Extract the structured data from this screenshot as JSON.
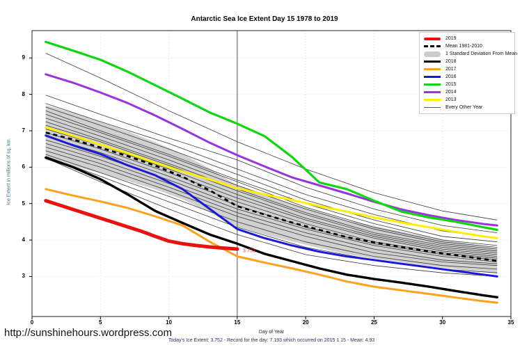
{
  "header": {
    "title": "Antarctic Sea Ice Extent Day 15 1978 to 2019"
  },
  "footer": {
    "url": "http://sunshinehours.wordpress.com",
    "caption": "Today's Ice Extent: 3.752  - Record for the day: 7.193 which occurred on 2015 1 15  - Mean: 4.93"
  },
  "colors": {
    "red_2019": "#e8110d",
    "black_2018": "#000000",
    "orange_2017": "#ffa01e",
    "blue_2016": "#1a1ad6",
    "green_2015": "#0fd60f",
    "purple_2014": "#9933dd",
    "yellow_2013": "#ffee00",
    "mean_dashed": "#000000",
    "std_band": "#cccccc",
    "other_years": "#3a3a3a",
    "grid": "#dedede",
    "day15_line": "#555555",
    "annotation": "#ef4123",
    "ylabel_text": "#2e7373"
  },
  "chart_data": {
    "type": "line",
    "title": "Antarctic Sea Ice Extent Day 15 1978 to 2019",
    "xlabel": "Day of Year",
    "ylabel": "Ice Extent in millions of sq. km.",
    "xlim": [
      0,
      35
    ],
    "ylim": [
      1.9,
      9.75
    ],
    "xticks": [
      0,
      5,
      10,
      15,
      20,
      25,
      30,
      35
    ],
    "yticks": [
      3,
      4,
      5,
      6,
      7,
      8,
      9
    ],
    "grid": "dotted",
    "legend_position": "top-right",
    "day15_marker_x": 15,
    "annotation": {
      "text": "3.752",
      "x": 15.4,
      "y": 3.71
    },
    "legend": [
      {
        "label": "2019",
        "style": "thick",
        "color": "#e8110d"
      },
      {
        "label": "Mean 1981-2010",
        "style": "dashed",
        "color": "#000000"
      },
      {
        "label": "1 Standard Deviation From Mean",
        "style": "band",
        "color": "#cccccc"
      },
      {
        "label": "2018",
        "style": "med",
        "color": "#000000"
      },
      {
        "label": "2017",
        "style": "med",
        "color": "#ffa01e"
      },
      {
        "label": "2016",
        "style": "med",
        "color": "#1a1ad6"
      },
      {
        "label": "2015",
        "style": "med",
        "color": "#0fd60f"
      },
      {
        "label": "2014",
        "style": "med",
        "color": "#9933dd"
      },
      {
        "label": "2013",
        "style": "med",
        "color": "#ffee00"
      },
      {
        "label": "Every Other Year",
        "style": "thin",
        "color": "#555555"
      }
    ],
    "band": {
      "name": "1 Standard Deviation From Mean",
      "days": [
        1,
        3,
        5,
        7,
        9,
        11,
        13,
        15,
        17,
        19,
        21,
        23,
        25,
        27,
        29,
        31,
        33,
        34
      ],
      "upper": [
        7.7,
        7.49,
        7.24,
        6.98,
        6.69,
        6.36,
        5.96,
        5.5,
        5.25,
        5.0,
        4.78,
        4.55,
        4.39,
        4.23,
        4.09,
        3.96,
        3.84,
        3.78
      ],
      "lower": [
        6.2,
        6.03,
        5.84,
        5.62,
        5.39,
        5.12,
        4.76,
        4.36,
        4.15,
        3.96,
        3.78,
        3.61,
        3.49,
        3.39,
        3.29,
        3.2,
        3.12,
        3.08
      ]
    },
    "mean": {
      "name": "Mean 1981-2010",
      "days": [
        1,
        3,
        5,
        7,
        9,
        11,
        13,
        15,
        17,
        19,
        21,
        23,
        25,
        27,
        29,
        31,
        33,
        34
      ],
      "values": [
        6.95,
        6.76,
        6.54,
        6.3,
        6.04,
        5.74,
        5.36,
        4.93,
        4.7,
        4.48,
        4.28,
        4.08,
        3.94,
        3.81,
        3.69,
        3.58,
        3.48,
        3.43
      ]
    },
    "series": [
      {
        "name": "2013",
        "color": "#ffee00",
        "width": 3,
        "days": [
          1,
          3,
          5,
          7,
          9,
          11,
          13,
          15,
          17,
          19,
          21,
          23,
          25,
          27,
          29,
          31,
          33,
          34
        ],
        "values": [
          7.09,
          6.86,
          6.62,
          6.38,
          6.12,
          5.88,
          5.66,
          5.42,
          5.25,
          5.1,
          4.93,
          4.78,
          4.62,
          4.48,
          4.35,
          4.22,
          4.1,
          4.05
        ]
      },
      {
        "name": "2014",
        "color": "#9933dd",
        "width": 3,
        "days": [
          1,
          3,
          5,
          7,
          9,
          11,
          13,
          15,
          17,
          19,
          21,
          23,
          25,
          27,
          29,
          31,
          33,
          34
        ],
        "values": [
          8.55,
          8.32,
          8.05,
          7.76,
          7.42,
          7.05,
          6.67,
          6.33,
          6.02,
          5.72,
          5.5,
          5.28,
          5.05,
          4.84,
          4.68,
          4.55,
          4.44,
          4.4
        ]
      },
      {
        "name": "2015",
        "color": "#0fd60f",
        "width": 3.2,
        "days": [
          1,
          3,
          5,
          7,
          9,
          11,
          13,
          15,
          17,
          19,
          21,
          23,
          25,
          27,
          29,
          31,
          33,
          34
        ],
        "values": [
          9.44,
          9.2,
          8.95,
          8.62,
          8.25,
          7.88,
          7.5,
          7.193,
          6.85,
          6.28,
          5.58,
          5.4,
          5.08,
          4.78,
          4.62,
          4.5,
          4.35,
          4.28
        ]
      },
      {
        "name": "2016",
        "color": "#1a1ad6",
        "width": 3,
        "days": [
          1,
          3,
          5,
          7,
          9,
          11,
          13,
          15,
          17,
          19,
          21,
          23,
          25,
          27,
          29,
          31,
          33,
          34
        ],
        "values": [
          6.87,
          6.6,
          6.36,
          6.05,
          5.78,
          5.4,
          4.85,
          4.3,
          4.05,
          3.85,
          3.68,
          3.55,
          3.45,
          3.35,
          3.25,
          3.15,
          3.05,
          3.0
        ]
      },
      {
        "name": "2017",
        "color": "#ffa01e",
        "width": 3,
        "days": [
          1,
          3,
          5,
          7,
          9,
          11,
          13,
          15,
          17,
          19,
          21,
          23,
          25,
          27,
          29,
          31,
          33,
          34
        ],
        "values": [
          5.4,
          5.22,
          5.06,
          4.88,
          4.65,
          4.4,
          3.95,
          3.55,
          3.38,
          3.22,
          3.05,
          2.86,
          2.72,
          2.62,
          2.52,
          2.42,
          2.32,
          2.28
        ]
      },
      {
        "name": "2018",
        "color": "#000000",
        "width": 3.4,
        "days": [
          1,
          3,
          5,
          7,
          9,
          11,
          13,
          15,
          17,
          19,
          21,
          23,
          25,
          27,
          29,
          31,
          33,
          34
        ],
        "values": [
          6.26,
          6.0,
          5.67,
          5.25,
          4.8,
          4.47,
          4.15,
          3.9,
          3.62,
          3.42,
          3.22,
          3.05,
          2.93,
          2.83,
          2.72,
          2.6,
          2.48,
          2.43
        ]
      },
      {
        "name": "2019",
        "color": "#e8110d",
        "width": 5,
        "days": [
          1,
          2,
          3,
          4,
          5,
          6,
          7,
          8,
          9,
          10,
          11,
          12,
          13,
          14,
          15
        ],
        "values": [
          5.08,
          4.96,
          4.84,
          4.72,
          4.6,
          4.48,
          4.36,
          4.24,
          4.1,
          3.97,
          3.9,
          3.85,
          3.81,
          3.78,
          3.752
        ]
      }
    ],
    "other_years": {
      "name": "Every Other Year",
      "days": [
        1,
        5,
        10,
        15,
        20,
        25,
        30,
        34
      ],
      "lines": [
        [
          9.13,
          8.45,
          7.55,
          6.7,
          5.95,
          5.3,
          4.8,
          4.55
        ],
        [
          7.98,
          7.45,
          6.8,
          6.2,
          5.45,
          4.85,
          4.4,
          4.2
        ],
        [
          7.75,
          7.25,
          6.65,
          5.95,
          5.25,
          4.7,
          4.25,
          4.05
        ],
        [
          7.65,
          7.15,
          6.5,
          5.8,
          5.1,
          4.55,
          4.1,
          3.95
        ],
        [
          7.55,
          7.0,
          6.35,
          5.65,
          5.0,
          4.45,
          4.0,
          3.85
        ],
        [
          7.45,
          6.95,
          6.3,
          5.6,
          4.9,
          4.35,
          3.95,
          3.8
        ],
        [
          7.35,
          6.85,
          6.2,
          5.5,
          4.85,
          4.3,
          3.9,
          3.75
        ],
        [
          7.25,
          6.75,
          6.1,
          5.4,
          4.75,
          4.2,
          3.85,
          3.7
        ],
        [
          7.15,
          6.7,
          6.05,
          5.35,
          4.7,
          4.15,
          3.8,
          3.65
        ],
        [
          7.05,
          6.6,
          5.95,
          5.25,
          4.6,
          4.1,
          3.75,
          3.6
        ],
        [
          6.95,
          6.5,
          5.85,
          5.15,
          4.55,
          4.05,
          3.7,
          3.55
        ],
        [
          6.85,
          6.4,
          5.75,
          5.05,
          4.45,
          3.95,
          3.65,
          3.5
        ],
        [
          6.75,
          6.3,
          5.65,
          4.95,
          4.35,
          3.9,
          3.6,
          3.45
        ],
        [
          6.65,
          6.2,
          5.55,
          4.85,
          4.3,
          3.85,
          3.55,
          3.4
        ],
        [
          6.55,
          6.1,
          5.45,
          4.75,
          4.2,
          3.75,
          3.45,
          3.35
        ],
        [
          6.45,
          6.0,
          5.35,
          4.65,
          4.1,
          3.65,
          3.4,
          3.3
        ],
        [
          6.35,
          5.85,
          5.2,
          4.5,
          3.95,
          3.55,
          3.3,
          3.2
        ],
        [
          6.3,
          5.75,
          5.05,
          4.35,
          3.8,
          3.45,
          3.2,
          3.1
        ],
        [
          6.25,
          5.6,
          4.85,
          4.15,
          3.6,
          3.3,
          3.1,
          3.0
        ]
      ]
    }
  }
}
